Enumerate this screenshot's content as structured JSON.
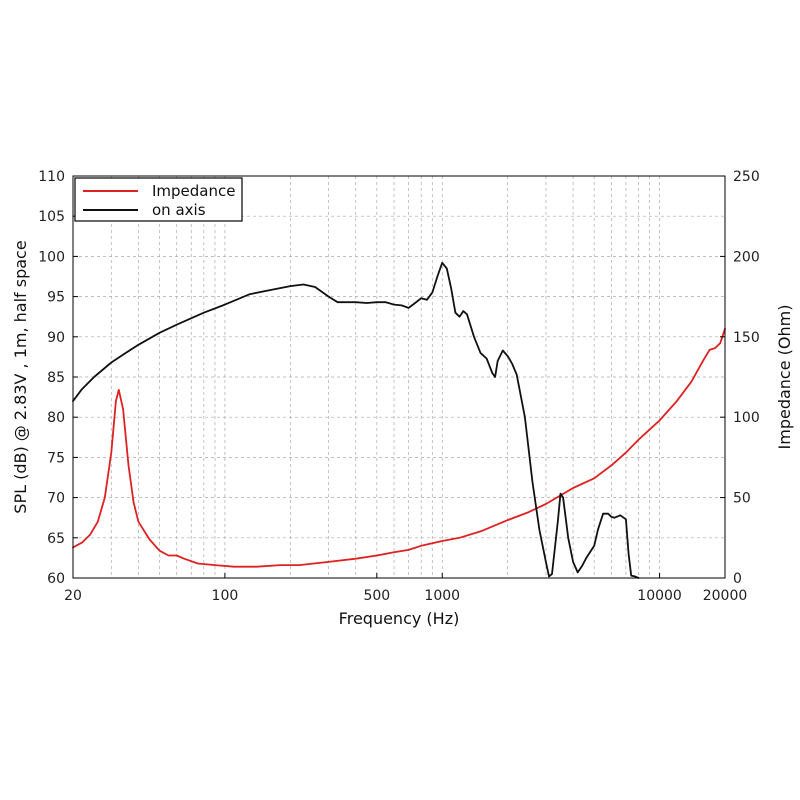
{
  "chart_data": {
    "type": "line",
    "xlabel": "Frequency (Hz)",
    "ylabel": "SPL (dB) @ 2.83V , 1m, half space",
    "y2label": "Impedance (Ohm)",
    "x_scale": "log",
    "xlim": [
      20,
      20000
    ],
    "ylim": [
      60,
      110
    ],
    "y2lim": [
      0,
      250
    ],
    "grid": true,
    "legend_position": "top-left",
    "x_ticks": [
      20,
      100,
      500,
      1000,
      10000,
      20000
    ],
    "x_tick_labels": [
      "20",
      "100",
      "500",
      "1000",
      "10000",
      "20000"
    ],
    "y_ticks": [
      60,
      65,
      70,
      75,
      80,
      85,
      90,
      95,
      100,
      105,
      110
    ],
    "y2_ticks": [
      0,
      50,
      100,
      150,
      200,
      250
    ],
    "series": [
      {
        "name": "Impedance",
        "axis": "right",
        "color": "#dd2222",
        "points": [
          [
            20,
            19
          ],
          [
            22,
            22
          ],
          [
            24,
            27
          ],
          [
            26,
            35
          ],
          [
            28,
            50
          ],
          [
            30,
            78
          ],
          [
            31.5,
            110
          ],
          [
            32.5,
            117
          ],
          [
            34,
            105
          ],
          [
            36,
            70
          ],
          [
            38,
            47
          ],
          [
            40,
            35
          ],
          [
            45,
            24
          ],
          [
            50,
            17
          ],
          [
            55,
            14
          ],
          [
            60,
            14
          ],
          [
            65,
            12
          ],
          [
            75,
            9
          ],
          [
            90,
            8
          ],
          [
            110,
            7
          ],
          [
            140,
            7
          ],
          [
            180,
            8
          ],
          [
            220,
            8
          ],
          [
            300,
            10
          ],
          [
            400,
            12
          ],
          [
            500,
            14
          ],
          [
            600,
            16
          ],
          [
            700,
            17.5
          ],
          [
            800,
            20
          ],
          [
            1000,
            23
          ],
          [
            1200,
            25
          ],
          [
            1500,
            29
          ],
          [
            2000,
            36
          ],
          [
            2500,
            41
          ],
          [
            3000,
            46
          ],
          [
            4000,
            56
          ],
          [
            5000,
            62
          ],
          [
            6000,
            70
          ],
          [
            7000,
            78
          ],
          [
            8000,
            86
          ],
          [
            10000,
            98
          ],
          [
            12000,
            110
          ],
          [
            14000,
            122
          ],
          [
            16000,
            136
          ],
          [
            17000,
            142
          ],
          [
            18000,
            143
          ],
          [
            19000,
            146
          ],
          [
            20000,
            155
          ]
        ]
      },
      {
        "name": "on axis",
        "axis": "left",
        "color": "#111111",
        "points": [
          [
            20,
            82
          ],
          [
            22,
            83.5
          ],
          [
            25,
            85
          ],
          [
            30,
            86.8
          ],
          [
            35,
            88
          ],
          [
            40,
            89
          ],
          [
            50,
            90.5
          ],
          [
            60,
            91.5
          ],
          [
            80,
            93
          ],
          [
            100,
            94
          ],
          [
            130,
            95.3
          ],
          [
            160,
            95.8
          ],
          [
            200,
            96.3
          ],
          [
            230,
            96.5
          ],
          [
            260,
            96.2
          ],
          [
            300,
            95
          ],
          [
            330,
            94.3
          ],
          [
            400,
            94.3
          ],
          [
            450,
            94.2
          ],
          [
            500,
            94.3
          ],
          [
            550,
            94.3
          ],
          [
            600,
            94
          ],
          [
            650,
            93.9
          ],
          [
            700,
            93.6
          ],
          [
            750,
            94.2
          ],
          [
            800,
            94.8
          ],
          [
            850,
            94.6
          ],
          [
            900,
            95.5
          ],
          [
            950,
            97.5
          ],
          [
            1000,
            99.2
          ],
          [
            1050,
            98.5
          ],
          [
            1100,
            96
          ],
          [
            1150,
            93
          ],
          [
            1200,
            92.5
          ],
          [
            1250,
            93.2
          ],
          [
            1300,
            92.8
          ],
          [
            1400,
            90
          ],
          [
            1500,
            88
          ],
          [
            1600,
            87.3
          ],
          [
            1700,
            85.5
          ],
          [
            1750,
            85
          ],
          [
            1800,
            87
          ],
          [
            1900,
            88.3
          ],
          [
            2000,
            87.6
          ],
          [
            2100,
            86.6
          ],
          [
            2200,
            85.3
          ],
          [
            2400,
            80
          ],
          [
            2600,
            72
          ],
          [
            2800,
            66
          ],
          [
            3000,
            62
          ],
          [
            3100,
            60.2
          ],
          [
            3200,
            60.5
          ],
          [
            3400,
            67
          ],
          [
            3500,
            70.5
          ],
          [
            3600,
            70
          ],
          [
            3800,
            65
          ],
          [
            4000,
            62
          ],
          [
            4200,
            60.7
          ],
          [
            4400,
            61.5
          ],
          [
            4600,
            62.5
          ],
          [
            5000,
            64
          ],
          [
            5200,
            66
          ],
          [
            5500,
            68
          ],
          [
            5800,
            68
          ],
          [
            6000,
            67.6
          ],
          [
            6200,
            67.5
          ],
          [
            6600,
            67.8
          ],
          [
            7000,
            67.3
          ],
          [
            7200,
            63
          ],
          [
            7400,
            60.3
          ],
          [
            7700,
            60.2
          ],
          [
            8000,
            60
          ]
        ]
      }
    ]
  }
}
